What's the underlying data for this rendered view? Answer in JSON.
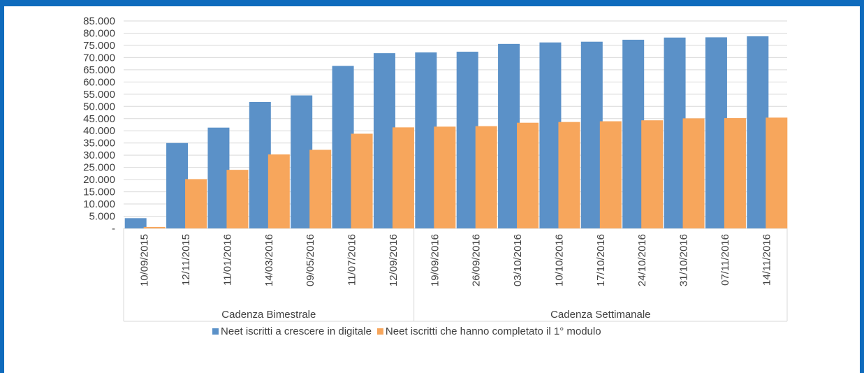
{
  "colors": {
    "frame": "#0f6bbd",
    "series1": "#5b91c8",
    "series2": "#f7a65c",
    "grid": "#d9d9d9",
    "text": "#404040"
  },
  "chart_data": {
    "type": "bar",
    "ylim": [
      0,
      85000
    ],
    "yticks": [
      {
        "v": 0,
        "label": "-"
      },
      {
        "v": 5000,
        "label": "5.000"
      },
      {
        "v": 10000,
        "label": "10.000"
      },
      {
        "v": 15000,
        "label": "15.000"
      },
      {
        "v": 20000,
        "label": "20.000"
      },
      {
        "v": 25000,
        "label": "25.000"
      },
      {
        "v": 30000,
        "label": "30.000"
      },
      {
        "v": 35000,
        "label": "35.000"
      },
      {
        "v": 40000,
        "label": "40.000"
      },
      {
        "v": 45000,
        "label": "45.000"
      },
      {
        "v": 50000,
        "label": "50.000"
      },
      {
        "v": 55000,
        "label": "55.000"
      },
      {
        "v": 60000,
        "label": "60.000"
      },
      {
        "v": 65000,
        "label": "65.000"
      },
      {
        "v": 70000,
        "label": "70.000"
      },
      {
        "v": 75000,
        "label": "75.000"
      },
      {
        "v": 80000,
        "label": "80.000"
      },
      {
        "v": 85000,
        "label": "85.000"
      }
    ],
    "categories": [
      "10/09/2015",
      "12/11/2015",
      "11/01/2016",
      "14/03/2016",
      "09/05/2016",
      "11/07/2016",
      "12/09/2016",
      "19/09/2016",
      "26/09/2016",
      "03/10/2016",
      "10/10/2016",
      "17/10/2016",
      "24/10/2016",
      "31/10/2016",
      "07/11/2016",
      "14/11/2016"
    ],
    "groups": [
      {
        "label": "Cadenza Bimestrale",
        "count": 7
      },
      {
        "label": "Cadenza Settimanale",
        "count": 9
      }
    ],
    "series": [
      {
        "name": "Neet iscritti a crescere in digitale",
        "values": [
          4200,
          35000,
          41300,
          51800,
          54500,
          66600,
          71800,
          72100,
          72400,
          75600,
          76200,
          76500,
          77300,
          78200,
          78300,
          78700
        ]
      },
      {
        "name": "Neet iscritti che hanno completato il 1° modulo",
        "values": [
          600,
          20200,
          24000,
          30300,
          32200,
          38800,
          41400,
          41700,
          41900,
          43300,
          43600,
          43900,
          44300,
          45100,
          45200,
          45400
        ]
      }
    ],
    "legend": "bottom"
  }
}
